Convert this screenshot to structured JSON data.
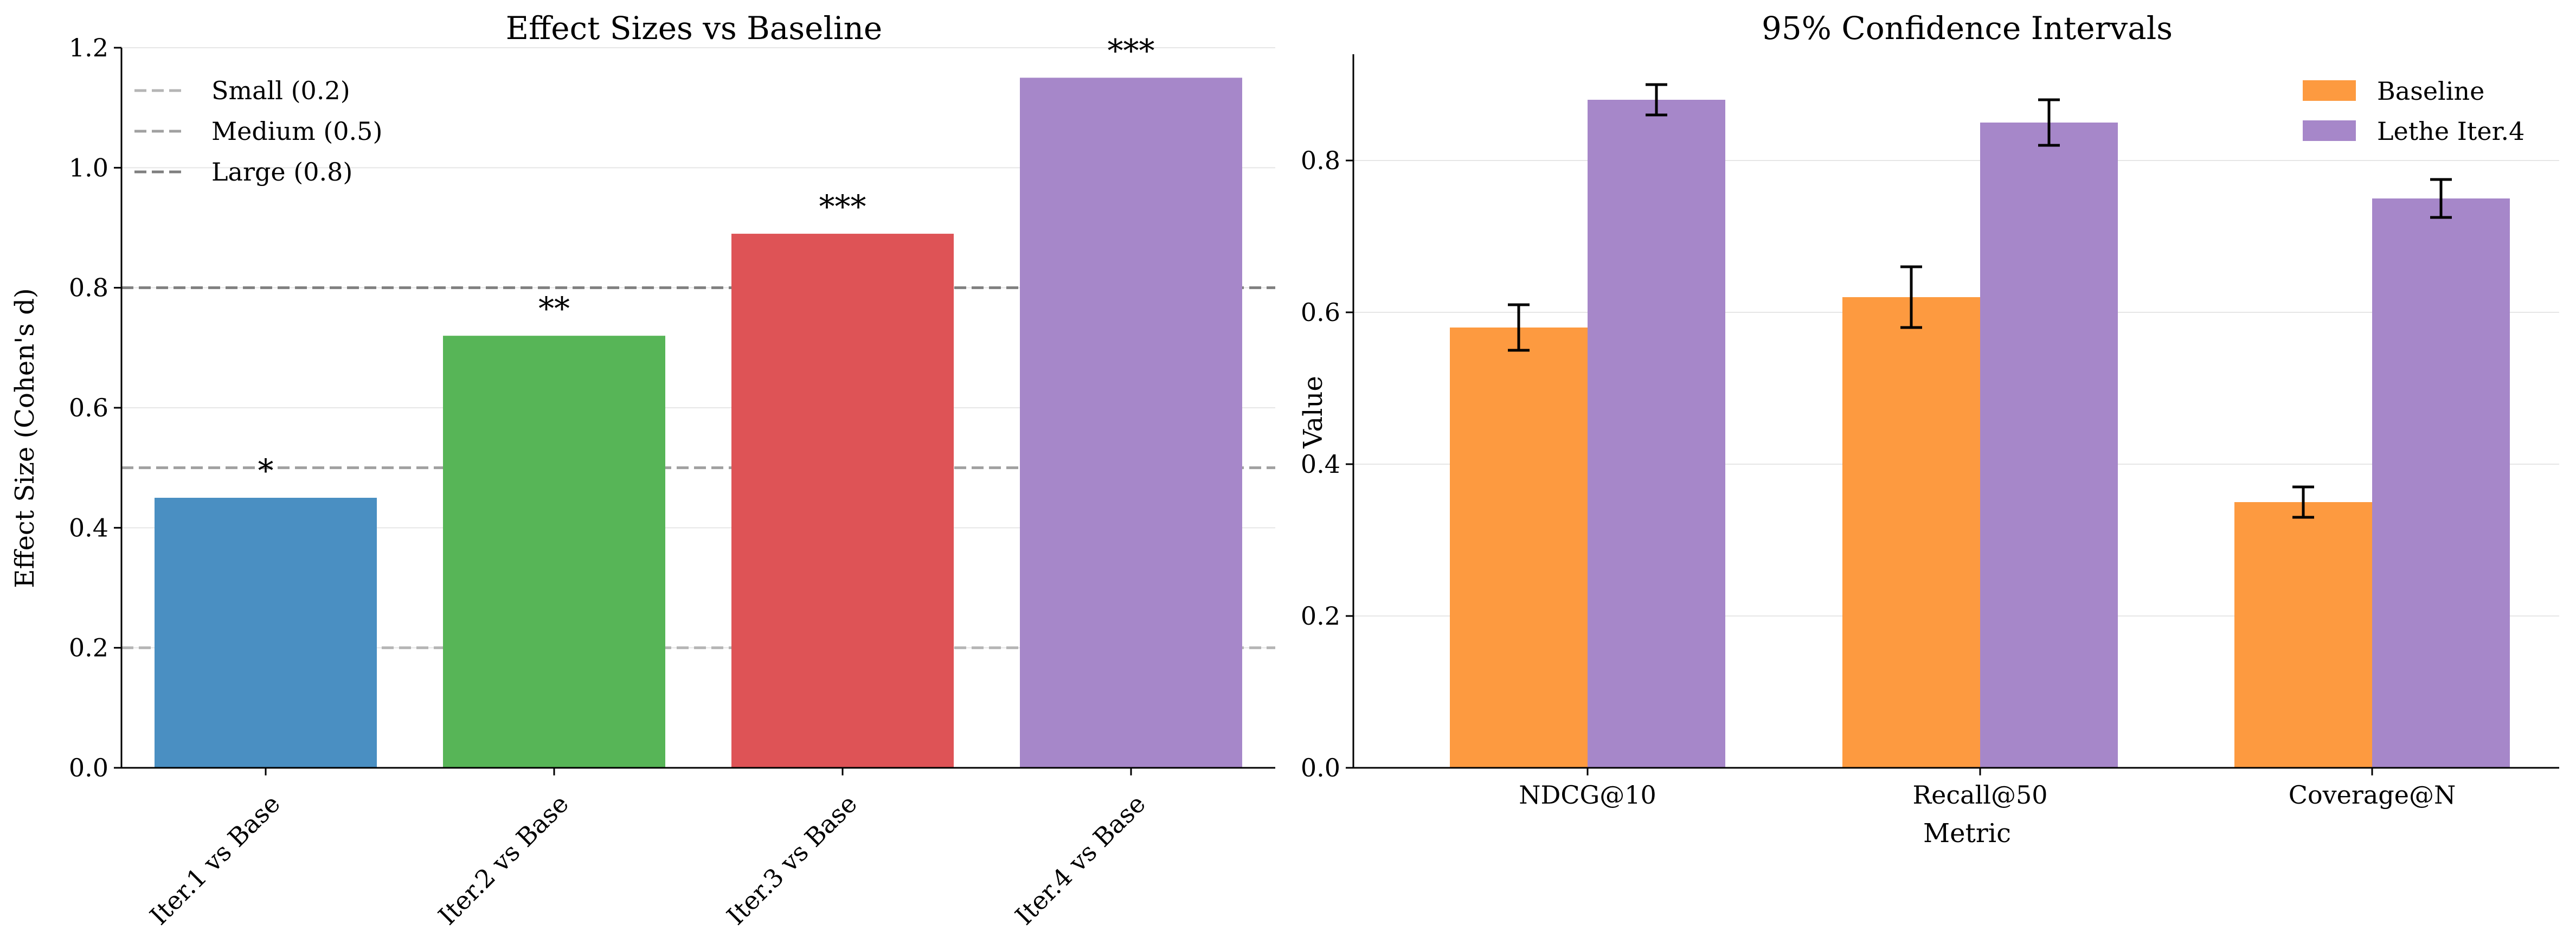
{
  "chart_data": [
    {
      "type": "bar",
      "title": "Effect Sizes vs Baseline",
      "xlabel": "",
      "ylabel": "Effect Size (Cohen's d)",
      "ylim": [
        0,
        1.2
      ],
      "yticks": [
        "0.0",
        "0.2",
        "0.4",
        "0.6",
        "0.8",
        "1.0",
        "1.2"
      ],
      "grid": "horizontal",
      "categories": [
        "Iter.1 vs Base",
        "Iter.2 vs Base",
        "Iter.3 vs Base",
        "Iter.4 vs Base"
      ],
      "values": [
        0.45,
        0.72,
        0.89,
        1.15
      ],
      "significance": [
        "*",
        "**",
        "***",
        "***"
      ],
      "bar_colors": [
        "#4a8fc2",
        "#57b557",
        "#de5356",
        "#a687c9"
      ],
      "reference_lines": [
        {
          "label": "Small (0.2)",
          "value": 0.2,
          "color": "#b5b5b5"
        },
        {
          "label": "Medium (0.5)",
          "value": 0.5,
          "color": "#a0a0a0"
        },
        {
          "label": "Large (0.8)",
          "value": 0.8,
          "color": "#7f7f7f"
        }
      ],
      "legend": "top-left"
    },
    {
      "type": "bar",
      "title": "95% Confidence Intervals",
      "xlabel": "Metric",
      "ylabel": "Value",
      "ylim": [
        0,
        0.94
      ],
      "yticks": [
        "0.0",
        "0.2",
        "0.4",
        "0.6",
        "0.8"
      ],
      "grid": "horizontal",
      "categories": [
        "NDCG@10",
        "Recall@50",
        "Coverage@N"
      ],
      "series": [
        {
          "name": "Baseline",
          "color": "#fd9a40",
          "values": [
            0.58,
            0.62,
            0.35
          ],
          "ci_low": [
            0.55,
            0.58,
            0.33
          ],
          "ci_high": [
            0.61,
            0.66,
            0.37
          ]
        },
        {
          "name": "Lethe Iter.4",
          "color": "#a687c9",
          "values": [
            0.88,
            0.85,
            0.75
          ],
          "ci_low": [
            0.86,
            0.82,
            0.725
          ],
          "ci_high": [
            0.9,
            0.88,
            0.775
          ]
        }
      ],
      "legend": "top-right"
    }
  ]
}
